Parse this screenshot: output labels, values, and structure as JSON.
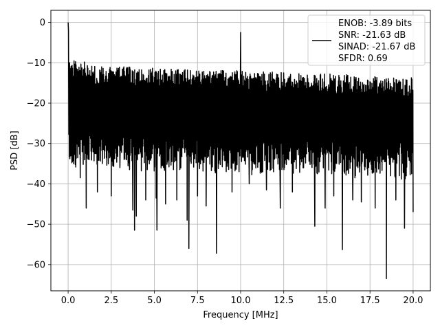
{
  "chart_data": {
    "type": "line",
    "title": "",
    "xlabel": "Frequency [MHz]",
    "ylabel": "PSD [dB]",
    "xlim": [
      -1.0,
      21.0
    ],
    "ylim": [
      -66.5,
      3.0
    ],
    "x_ticks": [
      0.0,
      2.5,
      5.0,
      7.5,
      10.0,
      12.5,
      15.0,
      17.5,
      20.0
    ],
    "x_tick_labels": [
      "0.0",
      "2.5",
      "5.0",
      "7.5",
      "10.0",
      "12.5",
      "15.0",
      "17.5",
      "20.0"
    ],
    "y_ticks": [
      0,
      -10,
      -20,
      -30,
      -40,
      -50,
      -60
    ],
    "y_tick_labels": [
      "0",
      "−10",
      "−20",
      "−30",
      "−40",
      "−50",
      "−60"
    ],
    "grid": true,
    "legend_position": "top-right",
    "series_color": "#000000",
    "series": [
      {
        "name": "ENOB: -3.89 bits\nSNR: -21.63 dB\nSINAD: -21.67 dB\nSFDR: 0.69",
        "legend_lines": [
          "ENOB: -3.89 bits",
          "SNR: -21.63 dB",
          "SINAD: -21.67 dB",
          "SFDR: 0.69"
        ],
        "x_range": [
          0.0,
          20.0
        ],
        "approx_upper_envelope_db": -9,
        "approx_typical_low_db": -37,
        "peaks": [
          {
            "x": 0.0,
            "y": 0.0
          },
          {
            "x": 0.02,
            "y": -2.0
          },
          {
            "x": 10.0,
            "y": -2.5
          }
        ],
        "notable_dips": [
          {
            "x": 0.25,
            "y": -34.5
          },
          {
            "x": 0.7,
            "y": -38.5
          },
          {
            "x": 1.05,
            "y": -46.0
          },
          {
            "x": 1.7,
            "y": -42.0
          },
          {
            "x": 2.5,
            "y": -43.0
          },
          {
            "x": 3.0,
            "y": -36.0
          },
          {
            "x": 3.75,
            "y": -46.5
          },
          {
            "x": 3.85,
            "y": -51.5
          },
          {
            "x": 3.95,
            "y": -48.0
          },
          {
            "x": 4.5,
            "y": -44.0
          },
          {
            "x": 5.1,
            "y": -43.5
          },
          {
            "x": 5.15,
            "y": -51.5
          },
          {
            "x": 5.65,
            "y": -45.0
          },
          {
            "x": 6.3,
            "y": -44.0
          },
          {
            "x": 6.9,
            "y": -49.0
          },
          {
            "x": 7.0,
            "y": -56.0
          },
          {
            "x": 7.5,
            "y": -43.0
          },
          {
            "x": 8.0,
            "y": -45.5
          },
          {
            "x": 8.6,
            "y": -57.2
          },
          {
            "x": 9.5,
            "y": -42.0
          },
          {
            "x": 10.5,
            "y": -40.0
          },
          {
            "x": 11.5,
            "y": -41.5
          },
          {
            "x": 12.3,
            "y": -46.0
          },
          {
            "x": 13.0,
            "y": -42.0
          },
          {
            "x": 14.3,
            "y": -50.5
          },
          {
            "x": 14.9,
            "y": -46.0
          },
          {
            "x": 15.4,
            "y": -43.0
          },
          {
            "x": 15.9,
            "y": -56.3
          },
          {
            "x": 16.5,
            "y": -44.0
          },
          {
            "x": 17.0,
            "y": -44.5
          },
          {
            "x": 17.8,
            "y": -46.0
          },
          {
            "x": 18.45,
            "y": -63.5
          },
          {
            "x": 19.0,
            "y": -44.0
          },
          {
            "x": 19.5,
            "y": -51.0
          },
          {
            "x": 20.0,
            "y": -47.0
          }
        ]
      }
    ]
  }
}
